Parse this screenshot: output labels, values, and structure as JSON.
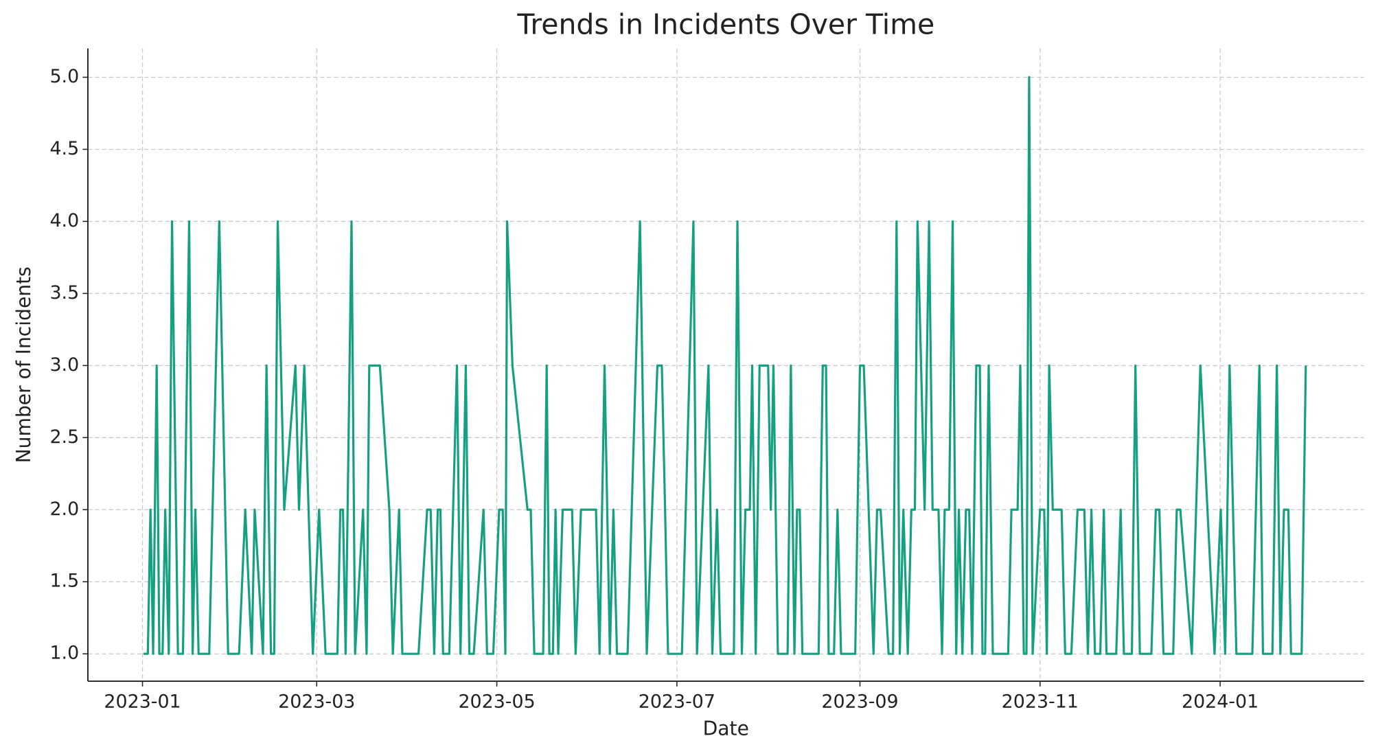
{
  "chart_data": {
    "type": "line",
    "title": "Trends in Incidents Over Time",
    "x_label": "Date",
    "y_label": "Number of Incidents",
    "x": [
      0.3,
      1.8,
      2.7,
      3.6,
      4.8,
      5.7,
      6.8,
      7.7,
      8.9,
      10,
      12,
      13.7,
      15.8,
      17,
      17.9,
      19,
      22.6,
      26,
      29,
      32.7,
      34.8,
      37,
      38,
      40.8,
      42,
      43.5,
      44.6,
      45.8,
      48,
      51.8,
      53,
      54.8,
      57.7,
      59.8,
      62,
      66,
      67,
      67.9,
      68.8,
      70.8,
      72,
      74.7,
      75.9,
      76.8,
      80.4,
      83.6,
      84.8,
      86.9,
      88,
      93.5,
      96.4,
      97.6,
      98.8,
      100,
      100.9,
      101.8,
      103.9,
      106.5,
      107.7,
      109.5,
      110.7,
      112.2,
      115.5,
      116.7,
      118.8,
      120.8,
      122,
      122.9,
      123.5,
      125.3,
      130.4,
      131.5,
      132.7,
      135.7,
      136.9,
      137.8,
      139,
      139.9,
      140.8,
      142.3,
      145.5,
      146.7,
      148.5,
      153.6,
      154.8,
      156.5,
      158.3,
      159.5,
      160.7,
      164.3,
      168.5,
      170.8,
      174.4,
      175.9,
      177,
      178,
      182.7,
      186.6,
      187.8,
      191.7,
      193,
      194.6,
      195.8,
      200.3,
      201.5,
      203,
      204.2,
      205.7,
      206.5,
      207.7,
      209,
      211.9,
      212.8,
      213.7,
      215.2,
      218.5,
      219.6,
      220.8,
      221.7,
      222.6,
      223.5,
      229,
      230.4,
      231.5,
      232.4,
      234.2,
      235.4,
      236.6,
      241.4,
      243,
      244.3,
      247.6,
      248.8,
      250,
      252.7,
      254.2,
      255.4,
      256.5,
      257.7,
      259.2,
      260.4,
      261.6,
      262.5,
      264.9,
      266.4,
      267.6,
      269.6,
      270.8,
      271.7,
      273.2,
      274.4,
      275.6,
      276.5,
      277.7,
      278.9,
      280,
      281,
      282.4,
      283.6,
      284.5,
      285.4,
      286.6,
      288,
      293.2,
      294.3,
      296.4,
      297.3,
      298.5,
      299.4,
      300.3,
      301.5,
      304,
      305.4,
      306.3,
      307.1,
      308.3,
      311.3,
      312.5,
      314.6,
      316.7,
      319,
      320.2,
      321.4,
      322.6,
      324.4,
      325.6,
      326.5,
      329.8,
      331.3,
      332.4,
      335.1,
      336.3,
      337.8,
      341.7,
      343.2,
      344.4,
      345.8,
      349.1,
      350.3,
      351.5,
      355.4,
      358.3,
      363.1,
      365.2,
      366.7,
      368.2,
      370.5,
      375.9,
      378.3,
      379.5,
      382.7,
      384.2,
      385.4,
      386.6,
      388.1,
      389,
      392.6,
      394
    ],
    "series": [
      {
        "name": "Incidents",
        "color": "#16a082",
        "values": [
          1,
          1,
          2,
          1,
          3,
          1,
          1,
          2,
          1,
          4,
          1,
          1,
          4,
          1,
          2,
          1,
          1,
          4,
          1,
          1,
          2,
          1,
          2,
          1,
          3,
          1,
          1,
          4,
          2,
          3,
          2,
          3,
          1,
          2,
          1,
          1,
          2,
          2,
          1,
          4,
          1,
          2,
          1,
          3,
          3,
          2,
          1,
          2,
          1,
          1,
          2,
          2,
          1,
          2,
          2,
          1,
          1,
          3,
          1,
          3,
          1,
          1,
          2,
          1,
          1,
          2,
          2,
          1,
          4,
          3,
          2,
          2,
          1,
          1,
          3,
          1,
          1,
          2,
          1,
          2,
          2,
          1,
          2,
          2,
          1,
          3,
          1,
          2,
          1,
          1,
          4,
          1,
          3,
          3,
          2,
          1,
          1,
          4,
          1,
          3,
          1,
          2,
          1,
          1,
          4,
          1,
          2,
          2,
          3,
          1,
          3,
          3,
          2,
          3,
          1,
          1,
          3,
          1,
          2,
          2,
          1,
          1,
          3,
          3,
          1,
          1,
          2,
          1,
          1,
          3,
          3,
          1,
          2,
          2,
          1,
          1,
          4,
          1,
          2,
          1,
          2,
          2,
          4,
          2,
          4,
          2,
          2,
          1,
          2,
          2,
          4,
          1,
          2,
          1,
          2,
          2,
          1,
          3,
          3,
          1,
          1,
          3,
          1,
          1,
          2,
          2,
          3,
          1,
          1,
          5,
          1,
          2,
          2,
          1,
          3,
          2,
          2,
          1,
          1,
          2,
          2,
          1,
          2,
          1,
          1,
          2,
          1,
          1,
          2,
          1,
          1,
          3,
          1,
          1,
          2,
          2,
          1,
          1,
          2,
          2,
          1,
          3,
          1,
          2,
          1,
          3,
          1,
          1,
          3,
          1,
          1,
          3,
          1,
          2,
          2,
          1,
          1,
          3
        ]
      }
    ],
    "xlim": [
      -18.5,
      413.7
    ],
    "xticks": [
      {
        "value": 0,
        "label": "2023-01"
      },
      {
        "value": 59,
        "label": "2023-03"
      },
      {
        "value": 120,
        "label": "2023-05"
      },
      {
        "value": 181,
        "label": "2023-07"
      },
      {
        "value": 243,
        "label": "2023-09"
      },
      {
        "value": 304,
        "label": "2023-11"
      },
      {
        "value": 365,
        "label": "2024-01"
      }
    ],
    "ylim": [
      0.81,
      5.2
    ],
    "yticks": [
      {
        "value": 1,
        "label": "1.0"
      },
      {
        "value": 1.5,
        "label": "1.5"
      },
      {
        "value": 2,
        "label": "2.0"
      },
      {
        "value": 2.5,
        "label": "2.5"
      },
      {
        "value": 3,
        "label": "3.0"
      },
      {
        "value": 3.5,
        "label": "3.5"
      },
      {
        "value": 4,
        "label": "4.0"
      },
      {
        "value": 4.5,
        "label": "4.5"
      },
      {
        "value": 5,
        "label": "5.0"
      }
    ],
    "grid": true
  }
}
